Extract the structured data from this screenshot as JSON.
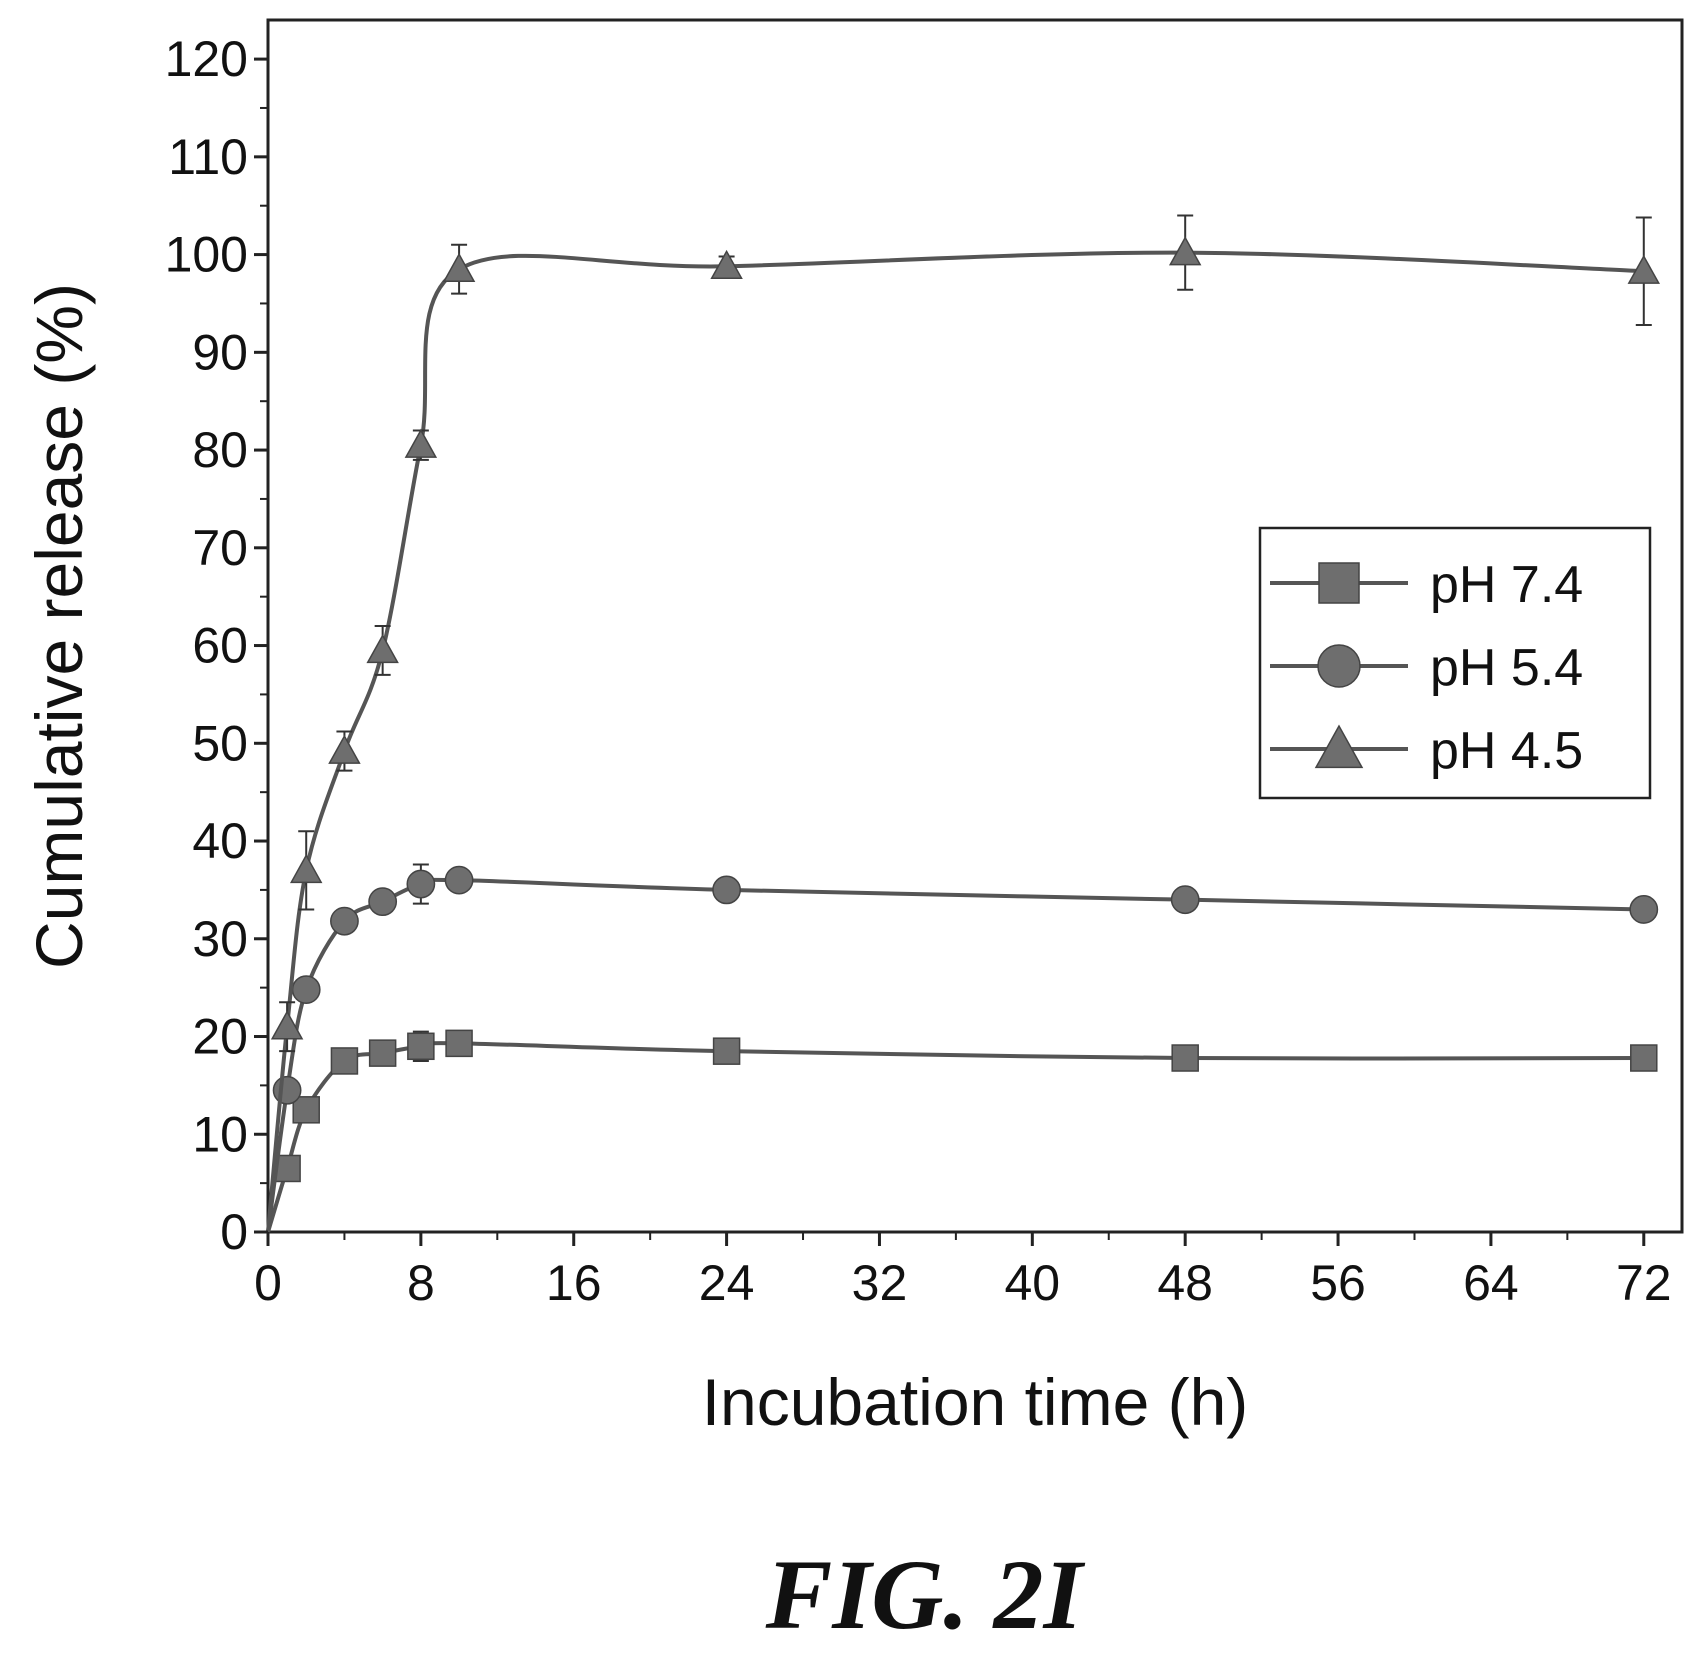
{
  "chart_data": {
    "type": "line",
    "xlabel": "Incubation time (h)",
    "ylabel": "Cumulative release (%)",
    "xlim": [
      0,
      74
    ],
    "ylim": [
      0,
      124
    ],
    "xticks": [
      0,
      8,
      16,
      24,
      32,
      40,
      48,
      56,
      64,
      72
    ],
    "yticks": [
      0,
      10,
      20,
      30,
      40,
      50,
      60,
      70,
      80,
      90,
      100,
      110,
      120
    ],
    "grid": false,
    "legend_position": "right",
    "series": [
      {
        "name": "pH 7.4",
        "marker": "square",
        "x": [
          0,
          1,
          2,
          4,
          6,
          8,
          10,
          24,
          48,
          72
        ],
        "y": [
          0,
          6.5,
          12.5,
          17.5,
          18.3,
          19.0,
          19.3,
          18.5,
          17.8,
          17.8
        ],
        "err": [
          0,
          0.5,
          0.5,
          0.8,
          0.8,
          1.5,
          1.0,
          0.5,
          0.5,
          0.5
        ]
      },
      {
        "name": "pH 5.4",
        "marker": "circle",
        "x": [
          0,
          1,
          2,
          4,
          6,
          8,
          10,
          24,
          48,
          72
        ],
        "y": [
          0,
          14.5,
          24.8,
          31.8,
          33.8,
          35.6,
          36.0,
          35.0,
          34.0,
          33.0
        ],
        "err": [
          0,
          1.0,
          1.0,
          1.0,
          1.0,
          2.0,
          1.0,
          0.5,
          0.5,
          0.5
        ]
      },
      {
        "name": "pH 4.5",
        "marker": "triangle",
        "x": [
          0,
          1,
          2,
          4,
          6,
          8,
          10,
          24,
          48,
          72
        ],
        "y": [
          0,
          21.0,
          37.0,
          49.2,
          59.5,
          80.5,
          98.5,
          98.8,
          100.2,
          98.3
        ],
        "err": [
          0,
          2.5,
          4.0,
          2.0,
          2.5,
          1.5,
          2.5,
          1.0,
          3.8,
          5.5
        ]
      }
    ]
  },
  "caption": "FIG. 2I"
}
